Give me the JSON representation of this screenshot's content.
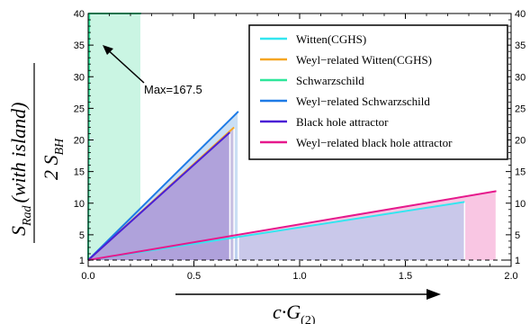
{
  "chart_data": {
    "type": "line",
    "xlim": [
      0.0,
      2.0
    ],
    "ylim": [
      0,
      40
    ],
    "x_ticks": [
      0.0,
      0.5,
      1.0,
      1.5,
      2.0
    ],
    "x_tick_labels": [
      "0.0",
      "0.5",
      "1.0",
      "1.5",
      "2.0"
    ],
    "y_ticks": [
      1,
      5,
      10,
      15,
      20,
      25,
      30,
      35,
      40
    ],
    "y_tick_labels": [
      "1",
      "5",
      "10",
      "15",
      "20",
      "25",
      "30",
      "35",
      "40"
    ],
    "ylabel_numerator": "S",
    "ylabel_numerator_sub": "Rad",
    "ylabel_numerator_paren": "(with island)",
    "ylabel_denominator": "2 S",
    "ylabel_denominator_sub": "BH",
    "xlabel": "c·G",
    "xlabel_sub": "(2)",
    "reference_line": {
      "y": 1,
      "style": "dashed",
      "color": "#000000"
    },
    "annotation": {
      "text": "Max=167.5"
    },
    "legend_position": "top-right",
    "series": [
      {
        "name": "Witten(CGHS)",
        "color": "#33e6f0",
        "fill": "#b8c8ec",
        "x": [
          0.0,
          1.78
        ],
        "y": [
          1,
          10.2
        ]
      },
      {
        "name": "Weyl−related Witten(CGHS)",
        "color": "#f5a623",
        "fill": "#c6b6dc",
        "x": [
          0.0,
          0.69
        ],
        "y": [
          1,
          22
        ]
      },
      {
        "name": "Schwarzschild",
        "color": "#2ee69a",
        "fill": "#b8f2da",
        "x": [
          0.0,
          0.005,
          0.25
        ],
        "y": [
          1,
          40,
          40
        ]
      },
      {
        "name": "Weyl−related Schwarzschild",
        "color": "#1e7be6",
        "fill": "#b8d4f0",
        "x": [
          0.0,
          0.71
        ],
        "y": [
          1,
          24.5
        ]
      },
      {
        "name": "Black hole attractor",
        "color": "#4a1fd6",
        "fill": "#a898d8",
        "x": [
          0.0,
          0.67
        ],
        "y": [
          1,
          21.2
        ]
      },
      {
        "name": "Weyl−related black hole attractor",
        "color": "#e6198c",
        "fill": "#f7b3da",
        "x": [
          0.0,
          1.93
        ],
        "y": [
          1,
          11.9
        ]
      }
    ]
  }
}
